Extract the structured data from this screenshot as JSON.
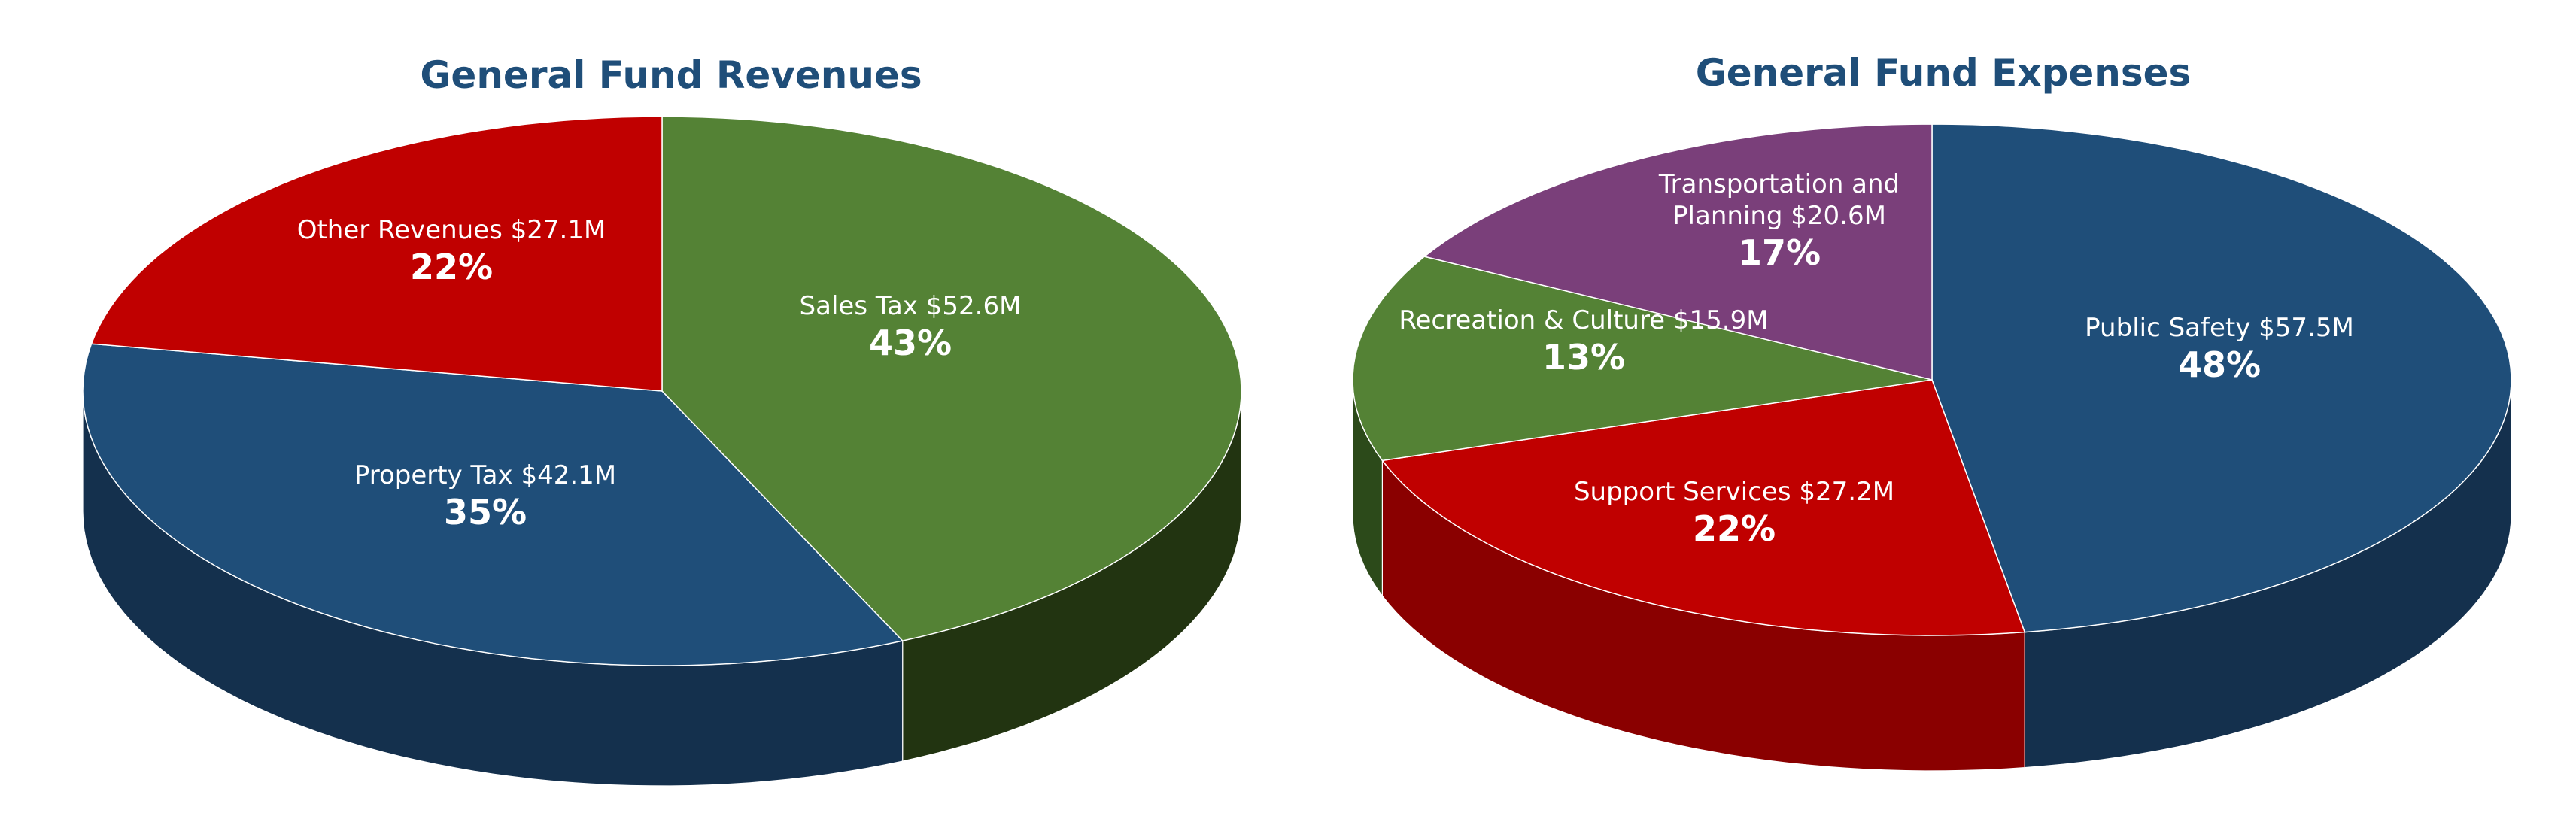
{
  "chart_data": [
    {
      "type": "pie",
      "title": "General Fund Revenues",
      "slices": [
        {
          "label": "Sales Tax $52.6M",
          "value": 52.6,
          "percent_label": "43%",
          "color": "#548235",
          "side_color": "#223411"
        },
        {
          "label": "Property Tax $42.1M",
          "value": 42.1,
          "percent_label": "35%",
          "color": "#1f4e79",
          "side_color": "#14304d"
        },
        {
          "label": "Other Revenues $27.1M",
          "value": 27.1,
          "percent_label": "22%",
          "color": "#c00000",
          "side_color": "#7a0000"
        }
      ]
    },
    {
      "type": "pie",
      "title": "General Fund Expenses",
      "slices": [
        {
          "label": "Public Safety $57.5M",
          "value": 57.5,
          "percent_label": "48%",
          "color": "#1f4e79",
          "side_color": "#14304d"
        },
        {
          "label": "Support Services $27.2M",
          "value": 27.2,
          "percent_label": "22%",
          "color": "#c00000",
          "side_color": "#8a0000"
        },
        {
          "label": "Recreation & Culture $15.9M",
          "value": 15.9,
          "percent_label": "13%",
          "color": "#548235",
          "side_color": "#2c4a1a"
        },
        {
          "label": "Transportation and Planning $20.6M",
          "value": 20.6,
          "percent_label": "17%",
          "color": "#7a3f7a",
          "side_color": "#4a244a"
        }
      ]
    }
  ]
}
